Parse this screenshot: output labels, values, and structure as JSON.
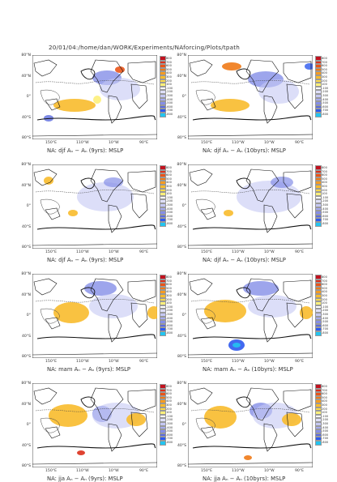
{
  "header": "20/01/04:/home/dan/WORK/Experiments/NAforcing/Plots/tpath",
  "captions": [
    "NA: djf Aₙ − Aₙ (9yrs): MSLP",
    "NA: djf Aₙ − Aₙ (10byrs): MSLP",
    "NA: djf Aₙ − Aₙ (9yrs): MSLP",
    "NA: djf Aₙ − Aₙ (10byrs): MSLP",
    "NA: mam Aₙ − Aₙ (9yrs): MSLP",
    "NA: mam Aₙ − Aₙ (10byrs): MSLP",
    "NA: jja Aₙ − Aₙ (9yrs): MSLP",
    "NA: jja Aₙ − Aₙ (10byrs): MSLP"
  ],
  "lat_labels": [
    "80°N",
    "40°N",
    "0°",
    "40°S",
    "80°S"
  ],
  "lon_labels": [
    "150°E",
    "110°W",
    "10°W",
    "90°E"
  ],
  "colorbar_labels": [
    "800",
    "700",
    "600",
    "500",
    "400",
    "300",
    "200",
    "100",
    "-100",
    "-200",
    "-300",
    "-400",
    "-500",
    "-600",
    "-700",
    "-800"
  ],
  "colorbar_colors": [
    "#c1121f",
    "#dc2f1b",
    "#ea5418",
    "#f07a17",
    "#f59b21",
    "#f8bb2c",
    "#fbd94a",
    "#fdf07a",
    "#ffffff",
    "#dfe0fb",
    "#c5c8f4",
    "#a6abee",
    "#858ee7",
    "#5b6bdf",
    "#2d59ee",
    "#23c4f0"
  ]
}
